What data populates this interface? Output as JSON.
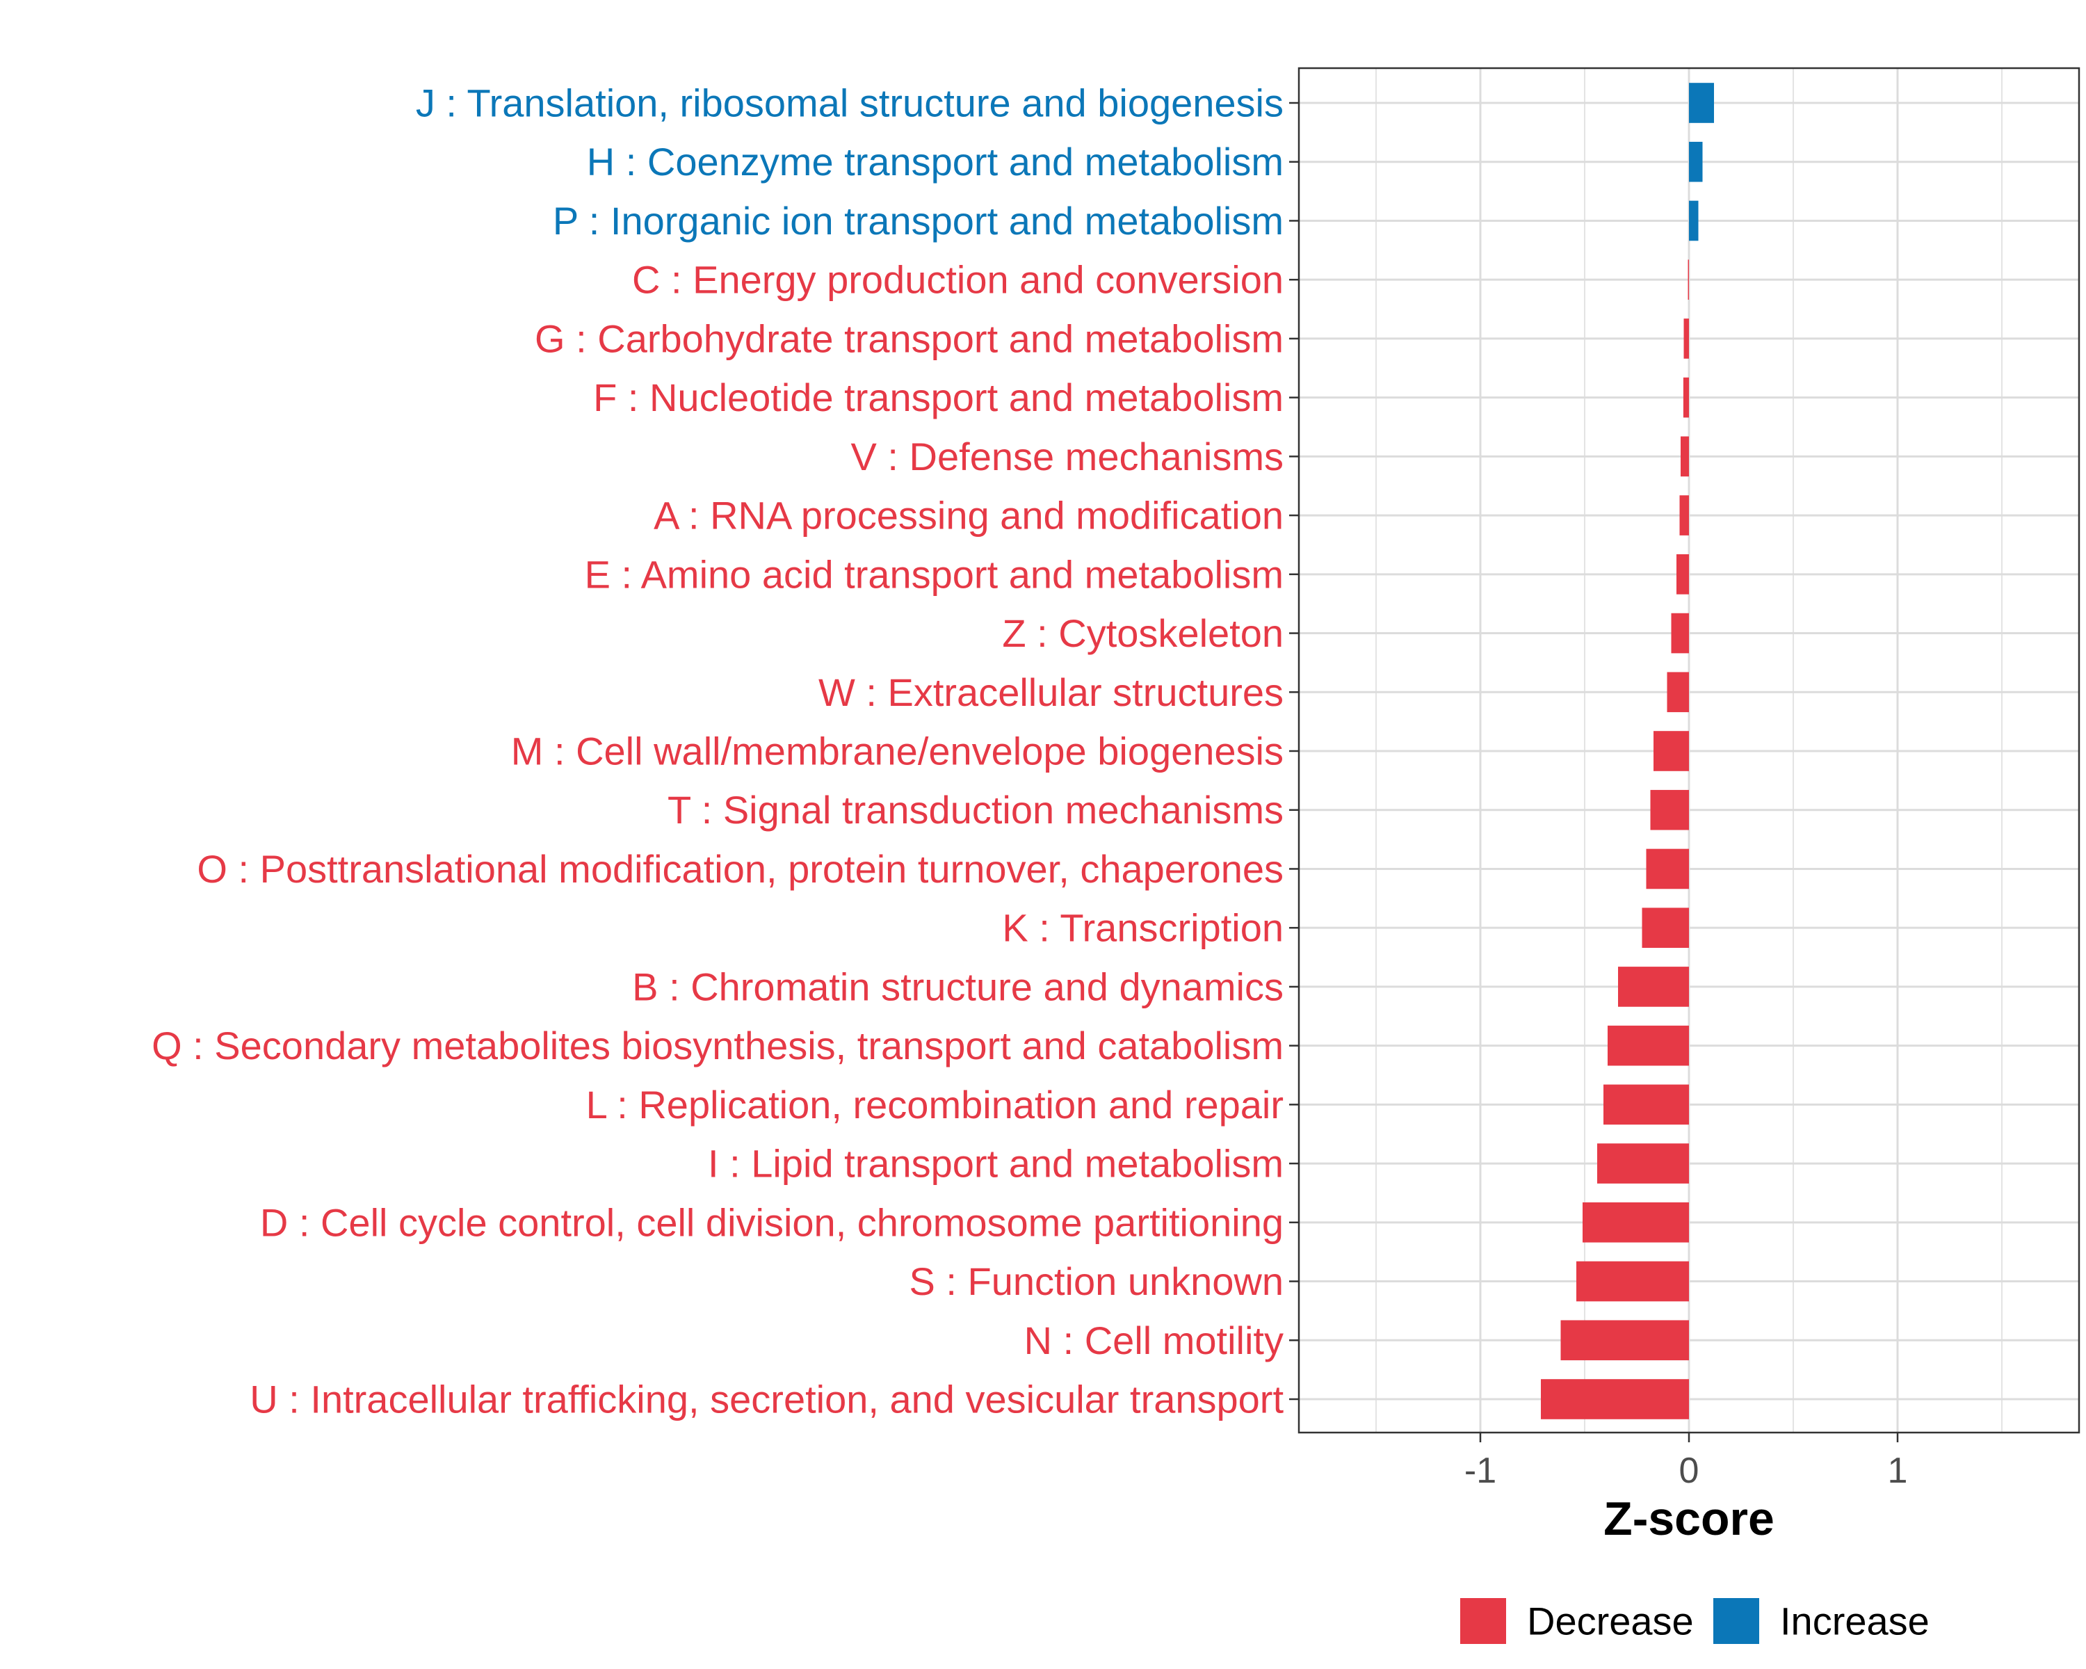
{
  "chart_data": {
    "type": "bar",
    "orientation": "horizontal",
    "title": "",
    "xlabel": "Z-score",
    "ylabel": "",
    "xlim": [
      -1.87,
      1.87
    ],
    "x_ticks": [
      -1,
      0,
      1
    ],
    "x_tick_labels": [
      "-1",
      "0",
      "1"
    ],
    "grid": true,
    "legend": {
      "position": "bottom",
      "entries": [
        {
          "name": "Decrease",
          "color": "#E63946"
        },
        {
          "name": "Increase",
          "color": "#0B77B8"
        }
      ]
    },
    "categories": [
      "J : Translation, ribosomal structure and biogenesis",
      "H : Coenzyme transport and metabolism",
      "P : Inorganic ion transport and metabolism",
      "C : Energy production and conversion",
      "G : Carbohydrate transport and metabolism",
      "F : Nucleotide transport and metabolism",
      "V : Defense mechanisms",
      "A : RNA processing and modification",
      "E : Amino acid transport and metabolism",
      "Z : Cytoskeleton",
      "W : Extracellular structures",
      "M : Cell wall/membrane/envelope biogenesis",
      "T : Signal transduction mechanisms",
      "O : Posttranslational modification, protein turnover, chaperones",
      "K : Transcription",
      "B : Chromatin structure and dynamics",
      "Q : Secondary metabolites biosynthesis, transport and catabolism",
      "L : Replication, recombination and repair",
      "I : Lipid transport and metabolism",
      "D : Cell cycle control, cell division, chromosome partitioning",
      "S : Function unknown",
      "N : Cell motility",
      "U : Intracellular trafficking, secretion, and vesicular transport"
    ],
    "values": [
      0.12,
      0.065,
      0.045,
      -0.005,
      -0.025,
      -0.027,
      -0.04,
      -0.045,
      -0.06,
      -0.085,
      -0.105,
      -0.17,
      -0.185,
      -0.205,
      -0.225,
      -0.34,
      -0.39,
      -0.41,
      -0.44,
      -0.51,
      -0.54,
      -0.615,
      -0.71
    ],
    "groups": [
      "Increase",
      "Increase",
      "Increase",
      "Decrease",
      "Decrease",
      "Decrease",
      "Decrease",
      "Decrease",
      "Decrease",
      "Decrease",
      "Decrease",
      "Decrease",
      "Decrease",
      "Decrease",
      "Decrease",
      "Decrease",
      "Decrease",
      "Decrease",
      "Decrease",
      "Decrease",
      "Decrease",
      "Decrease",
      "Decrease"
    ]
  }
}
